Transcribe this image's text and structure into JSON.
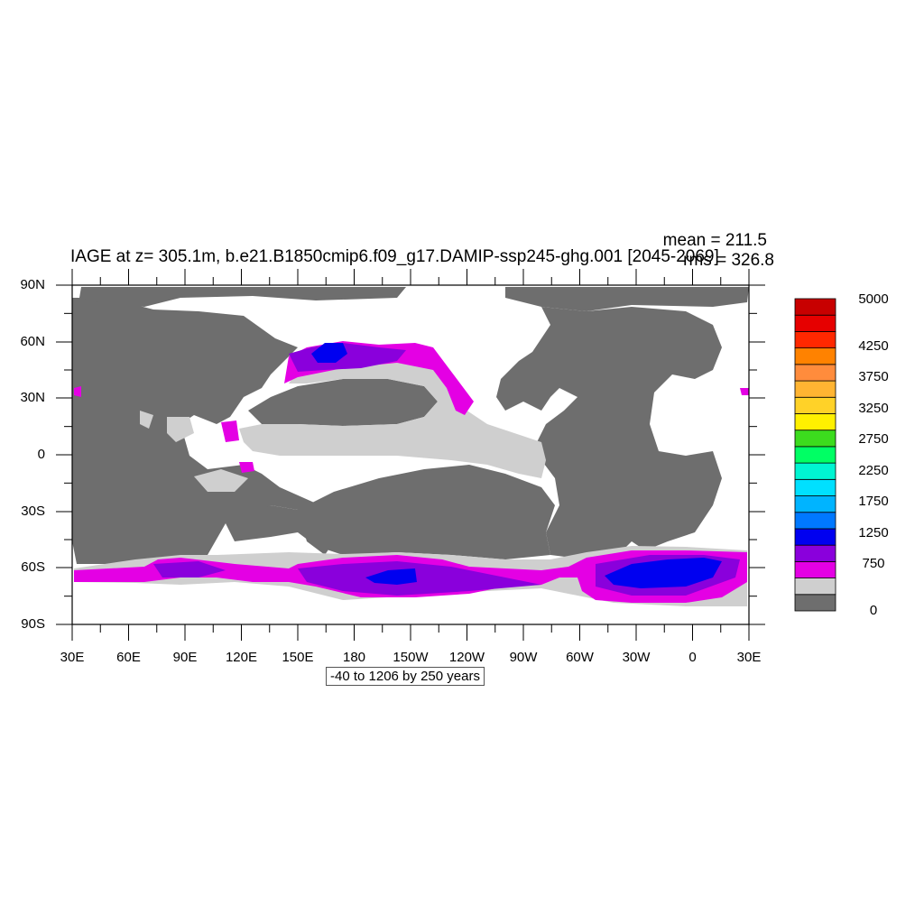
{
  "title": "IAGE at z= 305.1m, b.e21.B1850cmip6.f09_g17.DAMIP-ssp245-ghg.001 [2045-2069]",
  "stats": {
    "mean": "mean = 211.5",
    "rms": "rms = 326.8"
  },
  "info": "-40 to 1206 by 250 years",
  "axes": {
    "lat_labels": [
      "90N",
      "60N",
      "30N",
      "0",
      "30S",
      "60S",
      "90S"
    ],
    "lon_labels": [
      "30E",
      "60E",
      "90E",
      "120E",
      "150E",
      "180",
      "150W",
      "120W",
      "90W",
      "60W",
      "30W",
      "0",
      "30E"
    ]
  },
  "colors": {
    "land": "#6e6e6e",
    "missing": "#ffffff",
    "level_0_250": "#cfcfcf",
    "level_250_500": "#e400e4",
    "level_500_750": "#8a00dc",
    "level_750_1000": "#0000f0"
  },
  "colorbar": {
    "colors": [
      "#6e6e6e",
      "#cfcfcf",
      "#e400e4",
      "#8a00dc",
      "#0000f0",
      "#0078ff",
      "#00b4ff",
      "#00e0ff",
      "#00f5d2",
      "#00ff64",
      "#3cdc1e",
      "#fff000",
      "#ffd228",
      "#ffb432",
      "#ff8c3c",
      "#ff8200",
      "#ff2800",
      "#e60000",
      "#c80000"
    ],
    "labels": [
      "0",
      "750",
      "1250",
      "1750",
      "2250",
      "2750",
      "3250",
      "3750",
      "4250",
      "5000"
    ]
  }
}
